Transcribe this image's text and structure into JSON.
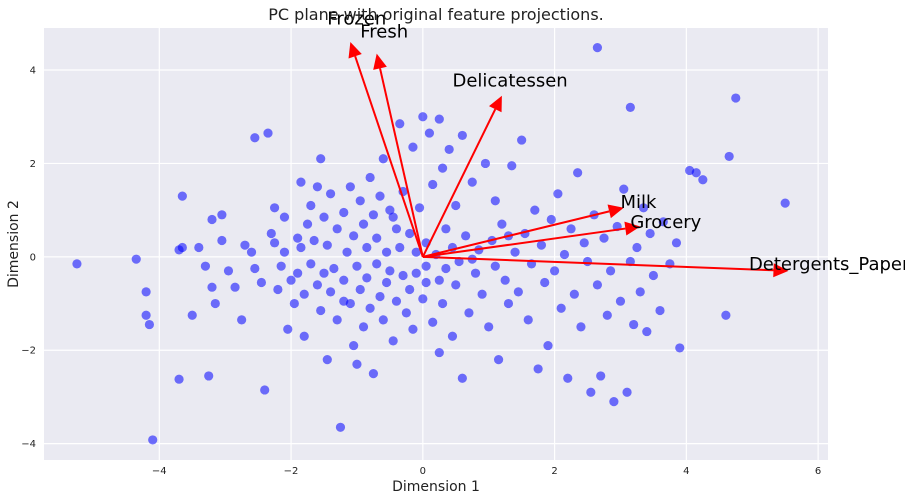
{
  "chart_data": {
    "type": "scatter",
    "title": "PC plane with original feature projections.",
    "xlabel": "Dimension 1",
    "ylabel": "Dimension 2",
    "xlim": [
      -5.75,
      6.15
    ],
    "ylim": [
      -4.35,
      4.9
    ],
    "xticks": [
      -4,
      -2,
      0,
      2,
      4,
      6
    ],
    "yticks": [
      -4,
      -2,
      0,
      2,
      4
    ],
    "xtick_labels": [
      "−4",
      "−2",
      "0",
      "2",
      "4",
      "6"
    ],
    "ytick_labels": [
      "−4",
      "−2",
      "0",
      "2",
      "4"
    ],
    "grid": true,
    "background": "#eaeaf2",
    "point_color": "#0000ff",
    "arrow_color": "#ff0000",
    "points": [
      [
        -5.25,
        -0.15
      ],
      [
        -4.35,
        -0.05
      ],
      [
        -4.2,
        -1.25
      ],
      [
        -4.15,
        -1.45
      ],
      [
        -4.2,
        -0.75
      ],
      [
        -4.1,
        -3.92
      ],
      [
        -3.7,
        -2.62
      ],
      [
        -3.65,
        1.3
      ],
      [
        -3.7,
        0.15
      ],
      [
        -3.65,
        0.2
      ],
      [
        -3.5,
        -1.25
      ],
      [
        -3.3,
        -0.2
      ],
      [
        -3.25,
        -2.55
      ],
      [
        -3.2,
        -0.65
      ],
      [
        -3.2,
        0.8
      ],
      [
        -3.15,
        -1.0
      ],
      [
        -3.05,
        0.9
      ],
      [
        -3.05,
        0.35
      ],
      [
        -2.95,
        -0.3
      ],
      [
        -2.85,
        -0.65
      ],
      [
        -2.75,
        -1.35
      ],
      [
        -2.6,
        0.1
      ],
      [
        -2.55,
        2.55
      ],
      [
        -2.55,
        -0.25
      ],
      [
        -2.45,
        -0.55
      ],
      [
        -2.4,
        -2.85
      ],
      [
        -2.35,
        2.65
      ],
      [
        -2.3,
        0.5
      ],
      [
        -2.25,
        1.05
      ],
      [
        -2.25,
        0.3
      ],
      [
        -2.2,
        -0.7
      ],
      [
        -2.15,
        -0.2
      ],
      [
        -2.1,
        0.85
      ],
      [
        -2.1,
        0.1
      ],
      [
        -2.05,
        -1.55
      ],
      [
        -2.0,
        -0.5
      ],
      [
        -1.95,
        -1.0
      ],
      [
        -1.9,
        0.4
      ],
      [
        -1.9,
        -0.35
      ],
      [
        -1.85,
        1.6
      ],
      [
        -1.85,
        0.2
      ],
      [
        -1.8,
        -0.8
      ],
      [
        -1.8,
        -1.7
      ],
      [
        -1.75,
        0.7
      ],
      [
        -1.7,
        -0.15
      ],
      [
        -1.7,
        1.1
      ],
      [
        -1.65,
        0.35
      ],
      [
        -1.6,
        -0.6
      ],
      [
        -1.55,
        -1.15
      ],
      [
        -1.55,
        2.1
      ],
      [
        -1.5,
        0.85
      ],
      [
        -1.5,
        -0.35
      ],
      [
        -1.45,
        -2.2
      ],
      [
        -1.45,
        0.25
      ],
      [
        -1.4,
        -0.75
      ],
      [
        -1.4,
        1.35
      ],
      [
        -1.35,
        -0.25
      ],
      [
        -1.3,
        0.6
      ],
      [
        -1.3,
        -1.35
      ],
      [
        -1.25,
        -3.65
      ],
      [
        -1.2,
        0.95
      ],
      [
        -1.2,
        -0.5
      ],
      [
        -1.15,
        0.1
      ],
      [
        -1.1,
        1.5
      ],
      [
        -1.1,
        -1.0
      ],
      [
        -1.05,
        0.45
      ],
      [
        -1.0,
        -0.2
      ],
      [
        -1.0,
        -2.3
      ],
      [
        -0.95,
        1.2
      ],
      [
        -0.95,
        -0.7
      ],
      [
        -0.9,
        0.7
      ],
      [
        -0.9,
        -1.5
      ],
      [
        -0.85,
        0.2
      ],
      [
        -0.85,
        -0.45
      ],
      [
        -0.8,
        1.7
      ],
      [
        -0.8,
        -1.1
      ],
      [
        -0.75,
        0.9
      ],
      [
        -0.75,
        -2.5
      ],
      [
        -0.7,
        -0.15
      ],
      [
        -0.7,
        0.4
      ],
      [
        -0.65,
        -0.85
      ],
      [
        -0.65,
        1.3
      ],
      [
        -0.6,
        -1.35
      ],
      [
        -0.6,
        2.1
      ],
      [
        -0.55,
        0.1
      ],
      [
        -0.55,
        -0.55
      ],
      [
        -0.5,
        1.0
      ],
      [
        -0.5,
        -0.3
      ],
      [
        -0.45,
        -1.8
      ],
      [
        -0.4,
        0.6
      ],
      [
        -0.4,
        -0.95
      ],
      [
        -0.35,
        2.85
      ],
      [
        -0.35,
        0.2
      ],
      [
        -0.3,
        -0.4
      ],
      [
        -0.3,
        1.4
      ],
      [
        -0.25,
        -1.2
      ],
      [
        -0.2,
        0.5
      ],
      [
        -0.2,
        -0.7
      ],
      [
        -0.15,
        2.35
      ],
      [
        -0.15,
        -1.55
      ],
      [
        -0.1,
        0.1
      ],
      [
        -0.1,
        -0.35
      ],
      [
        -0.05,
        1.05
      ],
      [
        0.0,
        3.0
      ],
      [
        0.0,
        -0.9
      ],
      [
        0.05,
        0.3
      ],
      [
        0.05,
        -0.2
      ],
      [
        0.1,
        2.65
      ],
      [
        0.15,
        1.55
      ],
      [
        0.15,
        -1.4
      ],
      [
        0.2,
        0.05
      ],
      [
        0.25,
        -0.5
      ],
      [
        0.25,
        2.95
      ],
      [
        0.3,
        1.9
      ],
      [
        0.3,
        -1.0
      ],
      [
        0.35,
        0.6
      ],
      [
        0.35,
        -0.25
      ],
      [
        0.4,
        2.3
      ],
      [
        0.45,
        -1.7
      ],
      [
        0.45,
        0.2
      ],
      [
        0.5,
        1.1
      ],
      [
        0.5,
        -0.6
      ],
      [
        0.55,
        -0.1
      ],
      [
        0.6,
        2.6
      ],
      [
        0.6,
        -2.6
      ],
      [
        0.65,
        0.45
      ],
      [
        0.7,
        -1.2
      ],
      [
        0.75,
        1.6
      ],
      [
        0.8,
        -0.35
      ],
      [
        0.85,
        0.15
      ],
      [
        0.9,
        -0.8
      ],
      [
        0.95,
        2.0
      ],
      [
        1.0,
        -1.5
      ],
      [
        1.05,
        0.35
      ],
      [
        1.1,
        -0.2
      ],
      [
        1.1,
        1.2
      ],
      [
        1.15,
        -2.2
      ],
      [
        1.2,
        0.7
      ],
      [
        1.25,
        -0.5
      ],
      [
        1.3,
        -1.0
      ],
      [
        1.35,
        1.95
      ],
      [
        1.4,
        0.1
      ],
      [
        1.45,
        -0.75
      ],
      [
        1.5,
        2.5
      ],
      [
        1.55,
        0.5
      ],
      [
        1.6,
        -1.35
      ],
      [
        1.65,
        -0.15
      ],
      [
        1.7,
        1.0
      ],
      [
        1.75,
        -2.4
      ],
      [
        1.8,
        0.25
      ],
      [
        1.85,
        -0.55
      ],
      [
        1.9,
        -1.9
      ],
      [
        1.95,
        0.8
      ],
      [
        2.0,
        -0.3
      ],
      [
        2.05,
        1.35
      ],
      [
        2.1,
        -1.1
      ],
      [
        2.15,
        0.05
      ],
      [
        2.2,
        -2.6
      ],
      [
        2.25,
        0.6
      ],
      [
        2.3,
        -0.8
      ],
      [
        2.35,
        1.8
      ],
      [
        2.4,
        -1.5
      ],
      [
        2.45,
        0.3
      ],
      [
        2.5,
        -0.1
      ],
      [
        2.55,
        -2.9
      ],
      [
        2.6,
        0.9
      ],
      [
        2.65,
        4.48
      ],
      [
        2.65,
        -0.6
      ],
      [
        2.7,
        -2.55
      ],
      [
        2.75,
        0.4
      ],
      [
        2.8,
        -1.25
      ],
      [
        2.85,
        -0.3
      ],
      [
        2.9,
        -3.1
      ],
      [
        2.95,
        0.65
      ],
      [
        3.0,
        -0.95
      ],
      [
        3.05,
        1.45
      ],
      [
        3.1,
        -2.9
      ],
      [
        3.15,
        3.2
      ],
      [
        3.15,
        -0.1
      ],
      [
        3.2,
        -1.45
      ],
      [
        3.25,
        0.2
      ],
      [
        3.3,
        -0.75
      ],
      [
        3.35,
        1.05
      ],
      [
        3.4,
        -1.6
      ],
      [
        3.45,
        0.5
      ],
      [
        3.5,
        -0.4
      ],
      [
        3.6,
        -1.15
      ],
      [
        3.65,
        0.75
      ],
      [
        3.75,
        -0.15
      ],
      [
        3.85,
        0.3
      ],
      [
        3.9,
        -1.95
      ],
      [
        4.05,
        1.85
      ],
      [
        4.15,
        1.8
      ],
      [
        4.25,
        1.65
      ],
      [
        4.6,
        -1.25
      ],
      [
        4.65,
        2.15
      ],
      [
        4.75,
        3.4
      ],
      [
        5.5,
        1.15
      ],
      [
        -1.6,
        1.5
      ],
      [
        -1.2,
        -0.95
      ],
      [
        -0.45,
        0.85
      ],
      [
        0.05,
        -0.55
      ],
      [
        0.75,
        -0.05
      ],
      [
        1.3,
        0.45
      ],
      [
        -2.7,
        0.25
      ],
      [
        -3.4,
        0.2
      ],
      [
        -1.05,
        -1.9
      ],
      [
        0.25,
        -2.05
      ]
    ],
    "arrows": [
      {
        "label": "Fresh",
        "x": -0.7,
        "y": 4.35,
        "lx": -0.95,
        "ly": 4.7
      },
      {
        "label": "Frozen",
        "x": -1.1,
        "y": 4.6,
        "lx": -1.45,
        "ly": 4.97
      },
      {
        "label": "Delicatessen",
        "x": 1.2,
        "y": 3.45,
        "lx": 0.45,
        "ly": 3.65
      },
      {
        "label": "Milk",
        "x": 3.05,
        "y": 1.05,
        "lx": 3.0,
        "ly": 1.05
      },
      {
        "label": "Grocery",
        "x": 3.3,
        "y": 0.65,
        "lx": 3.15,
        "ly": 0.62
      },
      {
        "label": "Detergents_Paper",
        "x": 5.55,
        "y": -0.3,
        "lx": 4.95,
        "ly": -0.28
      }
    ]
  }
}
